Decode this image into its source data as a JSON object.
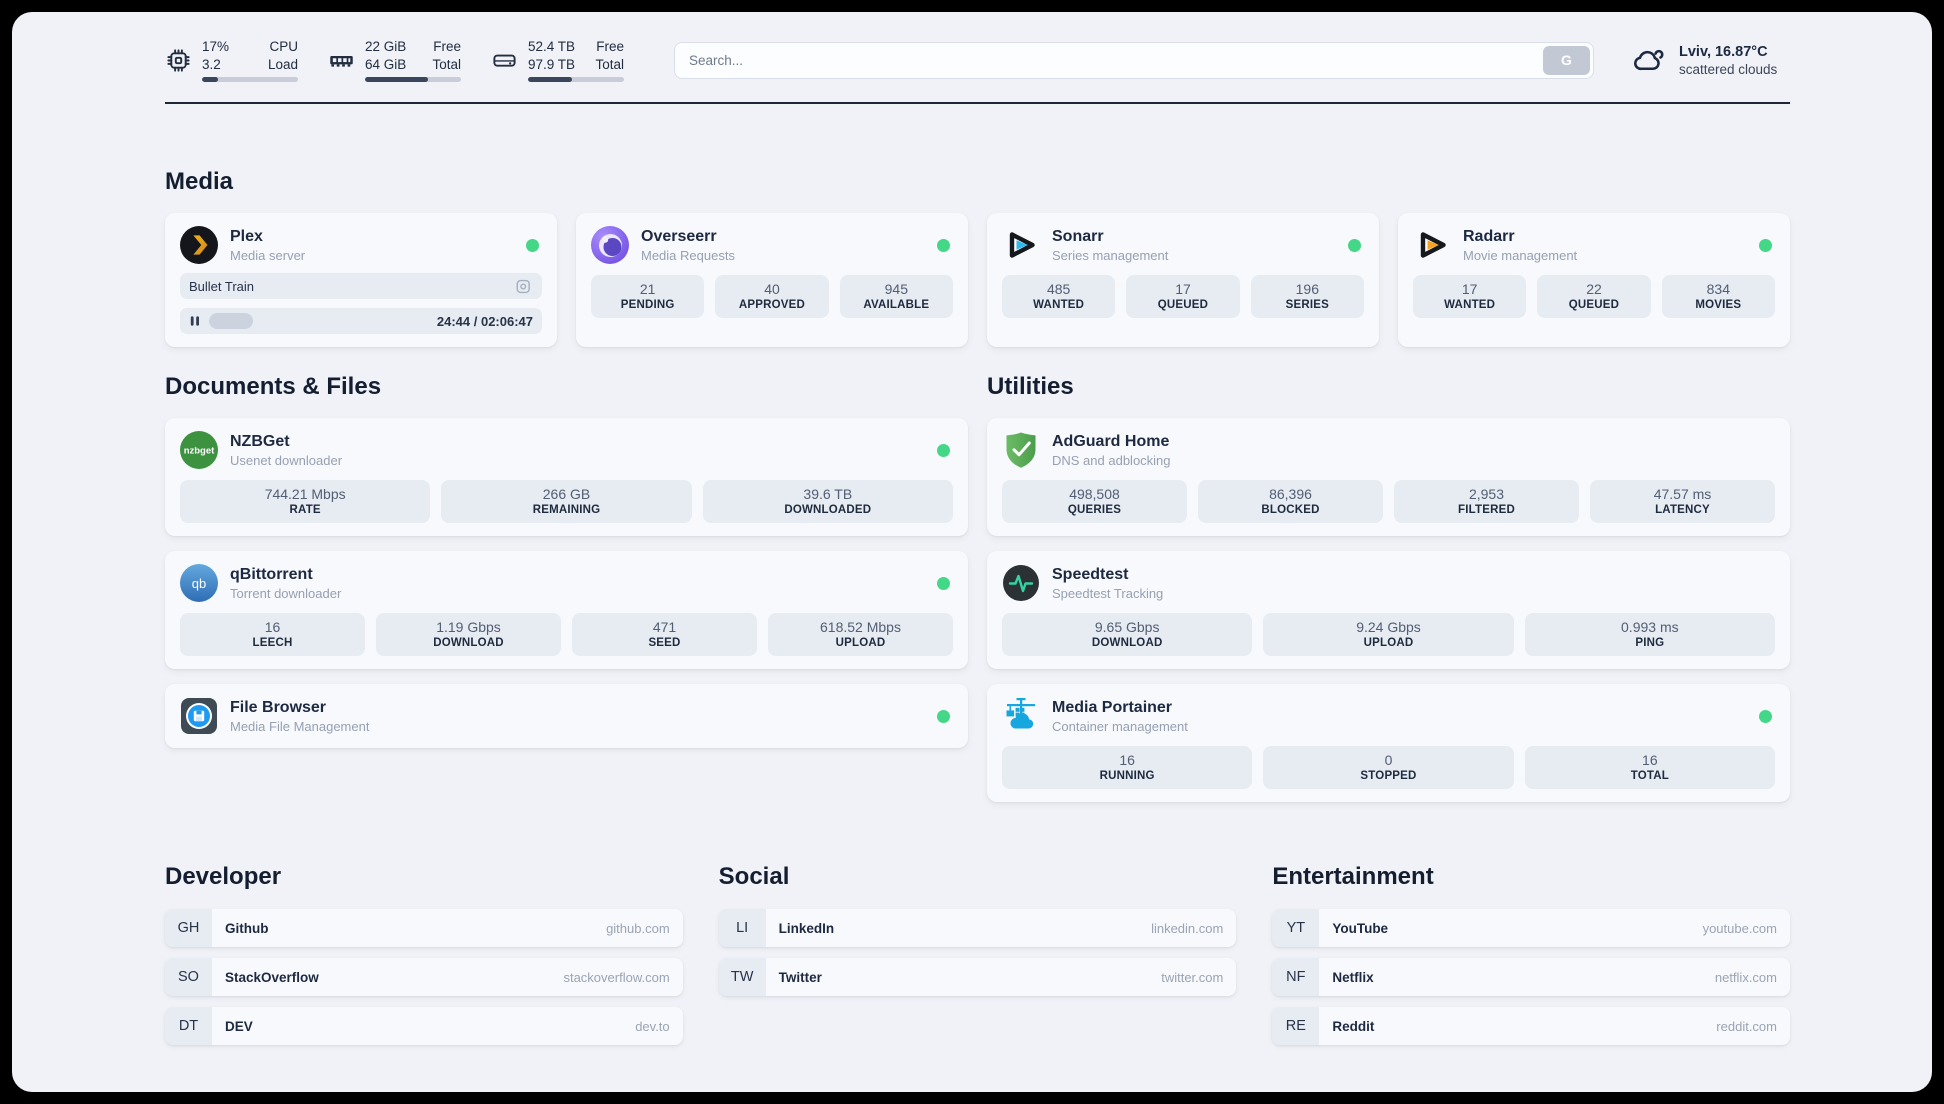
{
  "theme": {
    "status_green": "#43d787",
    "accent_dark": "#1e2838"
  },
  "header": {
    "resources": {
      "cpu": {
        "value_top": "17%",
        "value_bottom": "3.2",
        "label_top": "CPU",
        "label_bottom": "Load",
        "percent": 17
      },
      "memory": {
        "value_top": "22 GiB",
        "value_bottom": "64 GiB",
        "label_top": "Free",
        "label_bottom": "Total",
        "percent": 66
      },
      "disk": {
        "value_top": "52.4 TB",
        "value_bottom": "97.9 TB",
        "label_top": "Free",
        "label_bottom": "Total",
        "percent": 46
      }
    },
    "search": {
      "placeholder": "Search...",
      "button_label": "G"
    },
    "weather": {
      "location": "Lviv, 16.87°C",
      "condition": "scattered clouds"
    }
  },
  "media": {
    "heading": "Media",
    "plex": {
      "name": "Plex",
      "description": "Media server",
      "now_playing": "Bullet Train",
      "time": "24:44 / 02:06:47",
      "progress_percent": 20
    },
    "overseerr": {
      "name": "Overseerr",
      "description": "Media Requests",
      "stats": [
        {
          "value": "21",
          "label": "PENDING"
        },
        {
          "value": "40",
          "label": "APPROVED"
        },
        {
          "value": "945",
          "label": "AVAILABLE"
        }
      ]
    },
    "sonarr": {
      "name": "Sonarr",
      "description": "Series management",
      "stats": [
        {
          "value": "485",
          "label": "WANTED"
        },
        {
          "value": "17",
          "label": "QUEUED"
        },
        {
          "value": "196",
          "label": "SERIES"
        }
      ]
    },
    "radarr": {
      "name": "Radarr",
      "description": "Movie management",
      "stats": [
        {
          "value": "17",
          "label": "WANTED"
        },
        {
          "value": "22",
          "label": "QUEUED"
        },
        {
          "value": "834",
          "label": "MOVIES"
        }
      ]
    }
  },
  "documents": {
    "heading": "Documents & Files",
    "nzbget": {
      "name": "NZBGet",
      "description": "Usenet downloader",
      "stats": [
        {
          "value": "744.21 Mbps",
          "label": "RATE"
        },
        {
          "value": "266 GB",
          "label": "REMAINING"
        },
        {
          "value": "39.6 TB",
          "label": "DOWNLOADED"
        }
      ]
    },
    "qbittorrent": {
      "name": "qBittorrent",
      "description": "Torrent downloader",
      "stats": [
        {
          "value": "16",
          "label": "LEECH"
        },
        {
          "value": "1.19 Gbps",
          "label": "DOWNLOAD"
        },
        {
          "value": "471",
          "label": "SEED"
        },
        {
          "value": "618.52 Mbps",
          "label": "UPLOAD"
        }
      ]
    },
    "filebrowser": {
      "name": "File Browser",
      "description": "Media File Management"
    }
  },
  "utilities": {
    "heading": "Utilities",
    "adguard": {
      "name": "AdGuard Home",
      "description": "DNS and adblocking",
      "stats": [
        {
          "value": "498,508",
          "label": "QUERIES"
        },
        {
          "value": "86,396",
          "label": "BLOCKED"
        },
        {
          "value": "2,953",
          "label": "FILTERED"
        },
        {
          "value": "47.57 ms",
          "label": "LATENCY"
        }
      ]
    },
    "speedtest": {
      "name": "Speedtest",
      "description": "Speedtest Tracking",
      "stats": [
        {
          "value": "9.65 Gbps",
          "label": "DOWNLOAD"
        },
        {
          "value": "9.24 Gbps",
          "label": "UPLOAD"
        },
        {
          "value": "0.993 ms",
          "label": "PING"
        }
      ]
    },
    "portainer": {
      "name": "Media Portainer",
      "description": "Container management",
      "stats": [
        {
          "value": "16",
          "label": "RUNNING"
        },
        {
          "value": "0",
          "label": "STOPPED"
        },
        {
          "value": "16",
          "label": "TOTAL"
        }
      ]
    }
  },
  "bookmarks": [
    {
      "title": "Developer",
      "links": [
        {
          "abbr": "GH",
          "name": "Github",
          "domain": "github.com"
        },
        {
          "abbr": "SO",
          "name": "StackOverflow",
          "domain": "stackoverflow.com"
        },
        {
          "abbr": "DT",
          "name": "DEV",
          "domain": "dev.to"
        }
      ]
    },
    {
      "title": "Social",
      "links": [
        {
          "abbr": "LI",
          "name": "LinkedIn",
          "domain": "linkedin.com"
        },
        {
          "abbr": "TW",
          "name": "Twitter",
          "domain": "twitter.com"
        }
      ]
    },
    {
      "title": "Entertainment",
      "links": [
        {
          "abbr": "YT",
          "name": "YouTube",
          "domain": "youtube.com"
        },
        {
          "abbr": "NF",
          "name": "Netflix",
          "domain": "netflix.com"
        },
        {
          "abbr": "RE",
          "name": "Reddit",
          "domain": "reddit.com"
        }
      ]
    }
  ]
}
